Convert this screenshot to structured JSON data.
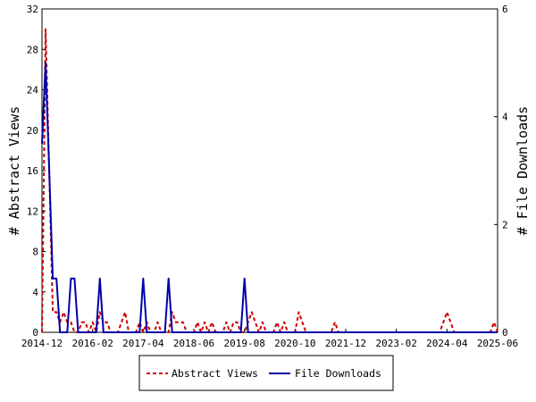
{
  "chart_data": {
    "type": "line",
    "title": "",
    "xlabel": "",
    "ylabel": "# Abstract Views",
    "y2label": "# File Downloads",
    "ylim": [
      0,
      32
    ],
    "y2lim": [
      0,
      6
    ],
    "y_ticks": [
      0,
      4,
      8,
      12,
      16,
      20,
      24,
      28,
      32
    ],
    "y2_ticks": [
      0,
      2,
      4,
      6
    ],
    "x_ticks": [
      "2014-12",
      "2016-02",
      "2017-04",
      "2018-06",
      "2019-08",
      "2020-10",
      "2021-12",
      "2023-02",
      "2024-04",
      "2025-06"
    ],
    "x_range": [
      "2014-12",
      "2025-06"
    ],
    "legend_position": "bottom-center",
    "grid": false,
    "series": [
      {
        "name": "Abstract Views",
        "axis": "left",
        "color": "#cc0000",
        "style": "dashed",
        "points": [
          [
            "2014-12",
            0
          ],
          [
            "2015-01",
            30
          ],
          [
            "2015-02",
            16
          ],
          [
            "2015-03",
            2
          ],
          [
            "2015-04",
            2
          ],
          [
            "2015-05",
            1
          ],
          [
            "2015-06",
            2
          ],
          [
            "2015-07",
            1
          ],
          [
            "2015-08",
            1
          ],
          [
            "2015-09",
            0
          ],
          [
            "2015-10",
            0
          ],
          [
            "2015-11",
            1
          ],
          [
            "2015-12",
            1
          ],
          [
            "2016-01",
            0
          ],
          [
            "2016-02",
            1
          ],
          [
            "2016-03",
            0
          ],
          [
            "2016-04",
            2
          ],
          [
            "2016-05",
            1
          ],
          [
            "2016-06",
            1
          ],
          [
            "2016-07",
            0
          ],
          [
            "2016-10",
            1
          ],
          [
            "2016-11",
            2
          ],
          [
            "2016-12",
            0
          ],
          [
            "2017-03",
            1
          ],
          [
            "2017-04",
            0
          ],
          [
            "2017-05",
            1
          ],
          [
            "2017-06",
            0
          ],
          [
            "2017-08",
            1
          ],
          [
            "2017-09",
            0
          ],
          [
            "2017-12",
            2
          ],
          [
            "2018-01",
            1
          ],
          [
            "2018-02",
            1
          ],
          [
            "2018-03",
            1
          ],
          [
            "2018-04",
            0
          ],
          [
            "2018-07",
            1
          ],
          [
            "2018-08",
            0
          ],
          [
            "2018-09",
            1
          ],
          [
            "2018-10",
            0
          ],
          [
            "2018-11",
            1
          ],
          [
            "2018-12",
            0
          ],
          [
            "2019-03",
            1
          ],
          [
            "2019-04",
            0
          ],
          [
            "2019-05",
            1
          ],
          [
            "2019-06",
            1
          ],
          [
            "2019-07",
            0
          ],
          [
            "2019-09",
            1
          ],
          [
            "2019-10",
            2
          ],
          [
            "2019-11",
            1
          ],
          [
            "2019-12",
            0
          ],
          [
            "2020-01",
            1
          ],
          [
            "2020-02",
            0
          ],
          [
            "2020-05",
            1
          ],
          [
            "2020-06",
            0
          ],
          [
            "2020-07",
            1
          ],
          [
            "2020-08",
            0
          ],
          [
            "2020-11",
            2
          ],
          [
            "2020-12",
            1
          ],
          [
            "2021-01",
            0
          ],
          [
            "2021-09",
            1
          ],
          [
            "2021-10",
            0
          ],
          [
            "2024-03",
            1
          ],
          [
            "2024-04",
            2
          ],
          [
            "2024-05",
            1
          ],
          [
            "2024-06",
            0
          ],
          [
            "2025-05",
            1
          ],
          [
            "2025-06",
            0
          ]
        ]
      },
      {
        "name": "File Downloads",
        "axis": "right",
        "color": "#0000aa",
        "style": "solid",
        "points": [
          [
            "2014-12",
            3.5
          ],
          [
            "2015-01",
            5
          ],
          [
            "2015-02",
            3
          ],
          [
            "2015-03",
            1
          ],
          [
            "2015-04",
            1
          ],
          [
            "2015-05",
            0
          ],
          [
            "2015-06",
            0
          ],
          [
            "2015-07",
            0
          ],
          [
            "2015-08",
            1
          ],
          [
            "2015-09",
            1
          ],
          [
            "2015-10",
            0
          ],
          [
            "2016-03",
            0
          ],
          [
            "2016-04",
            1
          ],
          [
            "2016-05",
            0
          ],
          [
            "2017-03",
            0
          ],
          [
            "2017-04",
            1
          ],
          [
            "2017-05",
            0
          ],
          [
            "2017-10",
            0
          ],
          [
            "2017-11",
            1
          ],
          [
            "2017-12",
            0
          ],
          [
            "2019-07",
            0
          ],
          [
            "2019-08",
            1
          ],
          [
            "2019-09",
            0
          ],
          [
            "2025-06",
            0
          ]
        ]
      }
    ]
  }
}
